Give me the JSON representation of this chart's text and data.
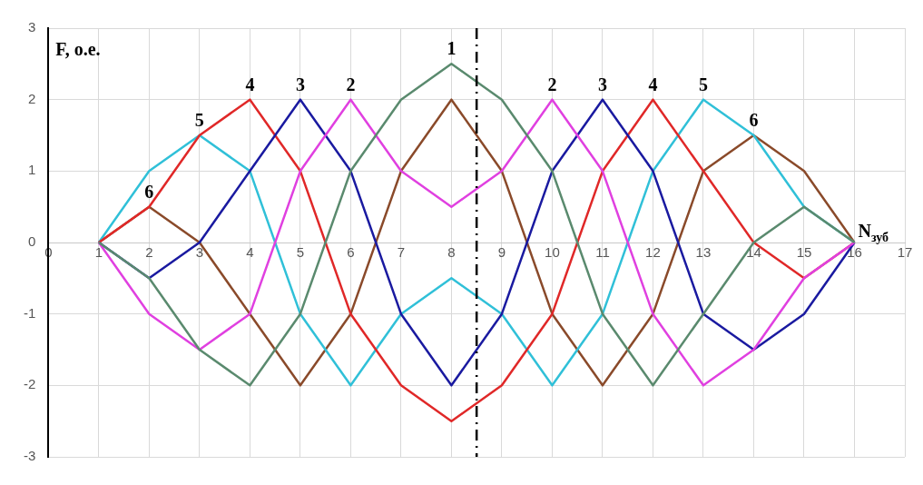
{
  "chart_data": {
    "type": "line",
    "xlabel": "N$_{зуб}$",
    "ylabel": "F, o.e.",
    "x": [
      1,
      2,
      3,
      4,
      5,
      6,
      7,
      8,
      9,
      10,
      11,
      12,
      13,
      14,
      15,
      16
    ],
    "series": [
      {
        "color": "#5a8a6e",
        "values": [
          0,
          -0.5,
          -1.5,
          -2,
          -1,
          1,
          2,
          2.5,
          2,
          1,
          -1,
          -2,
          -1,
          0,
          0.5,
          0
        ]
      },
      {
        "color": "#e040e0",
        "values": [
          0,
          -1,
          -1.5,
          -1,
          1,
          2,
          1,
          0.5,
          1,
          2,
          1,
          -1,
          -2,
          -1.5,
          -0.5,
          0
        ]
      },
      {
        "color": "#1a1aa0",
        "values": [
          0,
          -0.5,
          0,
          1,
          2,
          1,
          -1,
          -2,
          -1,
          1,
          2,
          1,
          -1,
          -1.5,
          -1,
          0
        ]
      },
      {
        "color": "#e02828",
        "values": [
          0,
          0.5,
          1.5,
          2,
          1,
          -1,
          -2,
          -2.5,
          -2,
          -1,
          1,
          2,
          1,
          0,
          -0.5,
          0
        ]
      },
      {
        "color": "#30c0d8",
        "values": [
          0,
          1,
          1.5,
          1,
          -1,
          -2,
          -1,
          -0.5,
          -1,
          -2,
          -1,
          1,
          2,
          1.5,
          0.5,
          0
        ]
      },
      {
        "color": "#8a4a2a",
        "values": [
          0,
          0.5,
          0,
          -1,
          -2,
          -1,
          1,
          2,
          1,
          -1,
          -2,
          -1,
          1,
          1.5,
          1,
          0
        ]
      }
    ],
    "xlim": [
      0,
      17
    ],
    "xticks": [
      0,
      1,
      2,
      3,
      4,
      5,
      6,
      7,
      8,
      9,
      10,
      11,
      12,
      13,
      14,
      15,
      16,
      17
    ],
    "ylim": [
      -3,
      3
    ],
    "yticks": [
      -3,
      -2,
      -1,
      0,
      1,
      2,
      3
    ],
    "grid": true,
    "legend": false,
    "marker": "none",
    "line_style": "solid",
    "ref_lines": [
      {
        "axis": "x",
        "value": 8.5,
        "color": "#000000",
        "line_style": "dashed"
      }
    ],
    "annotations": [
      {
        "text": "1",
        "x": 8,
        "y": 2.5
      },
      {
        "text": "2",
        "x": 6,
        "y": 2
      },
      {
        "text": "3",
        "x": 5,
        "y": 2
      },
      {
        "text": "4",
        "x": 4,
        "y": 2
      },
      {
        "text": "5",
        "x": 3,
        "y": 1.5
      },
      {
        "text": "6",
        "x": 2,
        "y": 0.5
      },
      {
        "text": "2",
        "x": 10,
        "y": 2
      },
      {
        "text": "3",
        "x": 11,
        "y": 2
      },
      {
        "text": "4",
        "x": 12,
        "y": 2
      },
      {
        "text": "5",
        "x": 13,
        "y": 2
      },
      {
        "text": "6",
        "x": 14,
        "y": 1.5
      }
    ]
  }
}
